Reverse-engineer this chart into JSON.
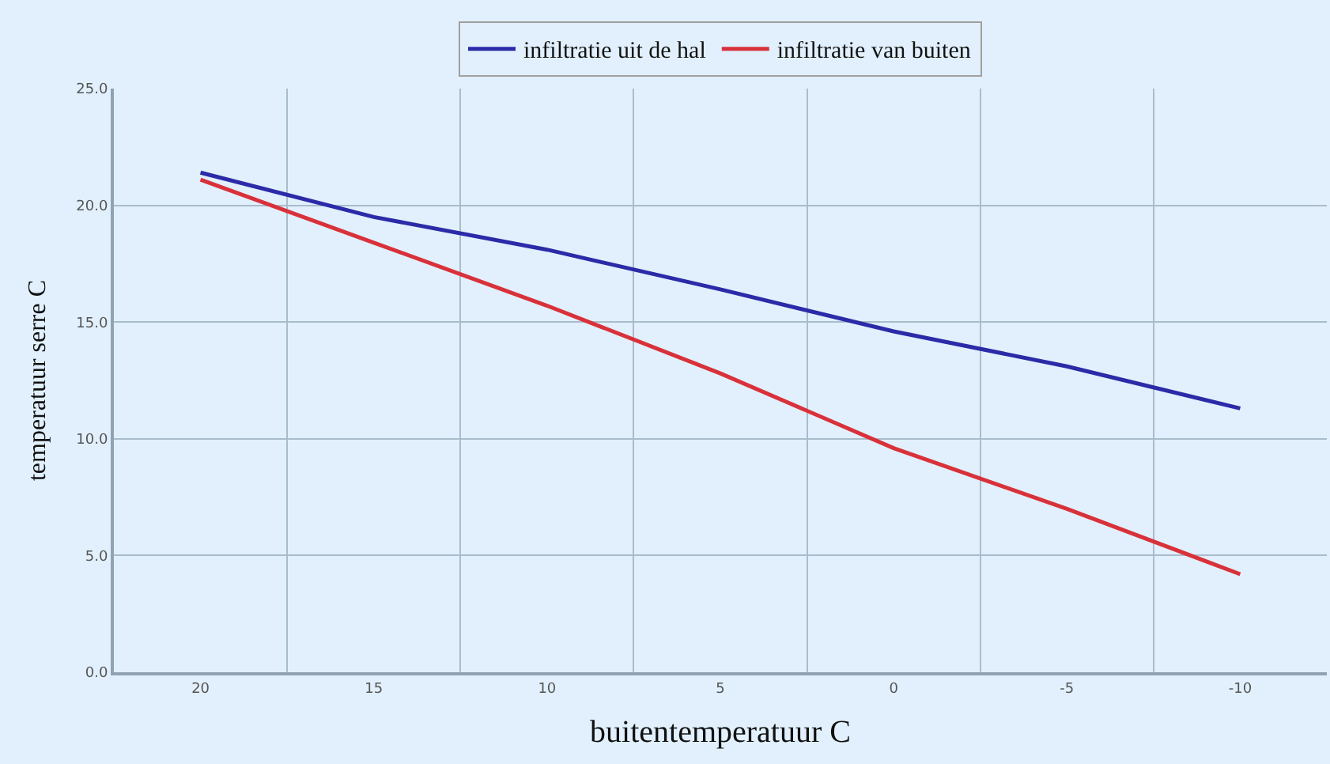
{
  "chart_data": {
    "type": "line",
    "xlabel": "buitentemperatuur C",
    "ylabel": "temperatuur serre C",
    "categories": [
      "20",
      "15",
      "10",
      "5",
      "0",
      "-5",
      "-10"
    ],
    "series": [
      {
        "name": "infiltratie uit de hal",
        "color": "#2b2ba8",
        "values": [
          21.4,
          19.5,
          18.1,
          16.4,
          14.6,
          13.1,
          11.3
        ]
      },
      {
        "name": "infiltratie van buiten",
        "color": "#d9313a",
        "values": [
          21.1,
          18.4,
          15.7,
          12.8,
          9.6,
          7.0,
          4.2
        ]
      }
    ],
    "ylim": [
      0,
      25
    ],
    "yticks": [
      {
        "value": 0,
        "label": "0.0"
      },
      {
        "value": 5,
        "label": "5.0"
      },
      {
        "value": 10,
        "label": "10.0"
      },
      {
        "value": 15,
        "label": "15.0"
      },
      {
        "value": 20,
        "label": "20.0"
      },
      {
        "value": 25,
        "label": "25.0"
      }
    ],
    "grid": true,
    "legend": "top",
    "marker": "none",
    "line_style": "solid"
  }
}
